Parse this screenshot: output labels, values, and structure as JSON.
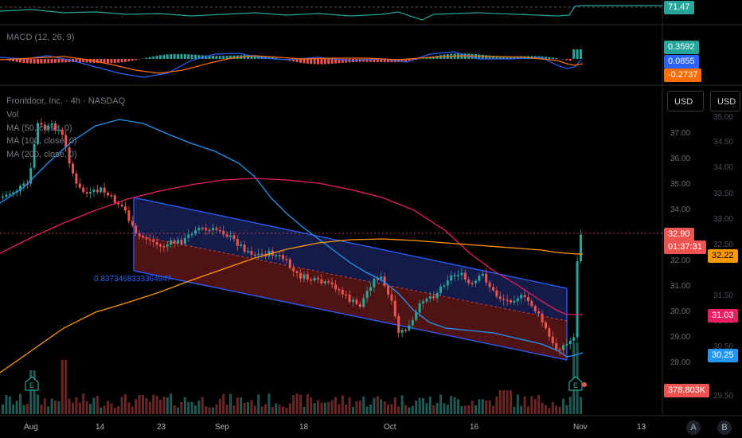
{
  "legend": {
    "symbol": "Frontdoor, Inc. · 4h · NASDAQ",
    "vol": "Vol",
    "ma50": "MA (50, close, 0)",
    "ma100": "MA (100, close, 0)",
    "ma200": "MA (200, close, 0)",
    "macd": "MACD (12, 26, 9)"
  },
  "price_labels": [
    "37.00",
    "36.00",
    "35.00",
    "34.00",
    "33.00",
    "32.00",
    "31.00",
    "30.00",
    "29.00",
    "28.00"
  ],
  "price_labels_right": [
    "35.00",
    "34.50",
    "34.00",
    "33.50",
    "33.00",
    "32.50",
    "31.50",
    "31.00",
    "30.50",
    "29.50"
  ],
  "axis_x": {
    "labels": [
      "Aug",
      "14",
      "23",
      "Sep",
      "18",
      "Oct",
      "16",
      "Nov",
      "13"
    ]
  },
  "tags": {
    "rsi": "71.47",
    "macd_hist": "0.3592",
    "macd_line": "0.0855",
    "macd_signal": "-0.2737",
    "price": "32.90",
    "countdown": "01:37:31",
    "ma50": "32.22",
    "ma100": "31.03",
    "ma200": "30.25",
    "volume": "378.803K"
  },
  "fib_label": "0.8373468333364947",
  "currency_buttons": [
    "USD",
    "USD"
  ],
  "bottom_buttons": [
    "A",
    "B"
  ],
  "earnings_marker": "E",
  "colors": {
    "up": "#26a69a",
    "down": "#ef5350",
    "ma50": "#2196f3",
    "ma100": "#e91e63",
    "ma200": "#ff9800",
    "macd": "#2962ff",
    "signal": "#ff6d00",
    "rsi": "#26a69a"
  },
  "icons": {
    "currency": "usd-select",
    "earnings": "earnings-icon"
  }
}
